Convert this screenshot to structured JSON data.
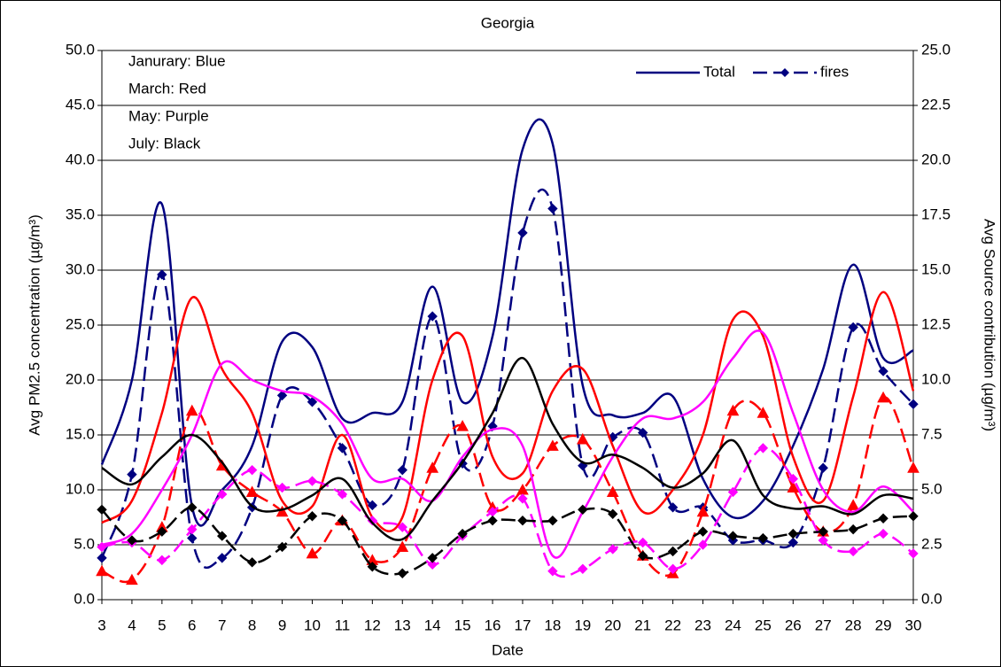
{
  "chart_data": {
    "type": "line",
    "title": "Georgia",
    "xlabel": "Date",
    "ylabel": "Avg PM2.5 concentration (µg/m³)",
    "y2label": "Avg Source contribution (µg/m³)",
    "annotations": [
      "Janurary: Blue",
      "March: Red",
      "May: Purple",
      "July: Black"
    ],
    "x": [
      3,
      4,
      5,
      6,
      7,
      8,
      9,
      10,
      11,
      12,
      13,
      14,
      15,
      16,
      17,
      18,
      19,
      20,
      21,
      22,
      23,
      24,
      25,
      26,
      27,
      28,
      29,
      30
    ],
    "xlim": [
      3,
      30
    ],
    "xticks": [
      3,
      4,
      5,
      6,
      7,
      8,
      9,
      10,
      11,
      12,
      13,
      14,
      15,
      16,
      17,
      18,
      19,
      20,
      21,
      22,
      23,
      24,
      25,
      26,
      27,
      28,
      29,
      30
    ],
    "ylim": [
      0,
      50
    ],
    "yticks": [
      {
        "value": 0,
        "label": "0.0"
      },
      {
        "value": 5,
        "label": "5.0"
      },
      {
        "value": 10,
        "label": "10.0"
      },
      {
        "value": 15,
        "label": "15.0"
      },
      {
        "value": 20,
        "label": "20.0"
      },
      {
        "value": 25,
        "label": "25.0"
      },
      {
        "value": 30,
        "label": "30.0"
      },
      {
        "value": 35,
        "label": "35.0"
      },
      {
        "value": 40,
        "label": "40.0"
      },
      {
        "value": 45,
        "label": "45.0"
      },
      {
        "value": 50,
        "label": "50.0"
      }
    ],
    "y2lim": [
      0,
      25
    ],
    "y2ticks": [
      {
        "value": 0,
        "label": "0.0"
      },
      2.5,
      {
        "value": 5,
        "label": "5.0"
      },
      7.5,
      {
        "value": 10,
        "label": "10.0"
      },
      12.5,
      {
        "value": 15,
        "label": "15.0"
      },
      17.5,
      {
        "value": 20,
        "label": "20.0"
      },
      22.5,
      {
        "value": 25,
        "label": "25.0"
      }
    ],
    "grid": true,
    "legend": "upper right",
    "series": [
      {
        "name": "Total",
        "color": "#000080",
        "values": [
          12.3,
          20,
          36,
          8.5,
          10,
          14,
          23.5,
          23,
          16.5,
          17,
          18,
          28.5,
          18,
          24,
          41,
          41.5,
          19.5,
          16.8,
          17,
          18.5,
          11,
          7.5,
          9,
          14,
          21,
          30.5,
          22,
          22.7
        ]
      },
      {
        "name": "fires",
        "color": "#000080",
        "axis": "y2",
        "dash": true,
        "marker": "diamond",
        "values": [
          1.9,
          5.7,
          14.8,
          2.8,
          1.9,
          4.2,
          9.3,
          9.0,
          6.9,
          4.3,
          5.9,
          12.9,
          6.2,
          7.9,
          16.7,
          17.8,
          6.1,
          7.4,
          7.6,
          4.2,
          4.2,
          2.7,
          2.7,
          2.6,
          6.0,
          12.4,
          10.4,
          8.9
        ]
      },
      {
        "color": "#ff0000",
        "values": [
          7,
          9,
          17,
          27.5,
          21,
          17,
          9,
          8.5,
          15,
          7.5,
          7.5,
          20,
          24,
          13,
          11.5,
          19,
          21,
          14,
          8,
          10,
          15,
          25.5,
          24,
          13,
          9,
          18.5,
          28,
          19
        ]
      },
      {
        "color": "#ff0000",
        "axis": "y2",
        "dash": true,
        "marker": "triangle",
        "values": [
          1.3,
          0.9,
          3.3,
          8.6,
          6.1,
          4.9,
          4.0,
          2.1,
          3.6,
          1.8,
          2.4,
          6.0,
          7.9,
          4.2,
          5.0,
          7.0,
          7.3,
          4.9,
          2.0,
          1.2,
          4.0,
          8.6,
          8.5,
          5.1,
          3.1,
          4.3,
          9.2,
          6.0
        ]
      },
      {
        "color": "#ff00ff",
        "values": [
          5,
          6,
          10,
          15,
          21.5,
          20,
          19,
          18.5,
          16,
          11,
          11,
          9,
          13,
          15.5,
          14,
          4,
          8,
          13,
          16.5,
          16.5,
          18,
          22,
          24.3,
          17,
          10,
          8,
          10.3,
          8
        ]
      },
      {
        "color": "#ff00ff",
        "axis": "y2",
        "dash": true,
        "marker": "diamond",
        "values": [
          2.4,
          2.6,
          1.8,
          3.2,
          4.8,
          5.9,
          5.1,
          5.4,
          4.8,
          3.6,
          3.3,
          1.6,
          2.9,
          4.0,
          4.6,
          1.3,
          1.4,
          2.3,
          2.6,
          1.4,
          2.5,
          4.9,
          6.9,
          5.5,
          2.7,
          2.2,
          3.0,
          2.1
        ]
      },
      {
        "color": "#000000",
        "values": [
          12,
          10.5,
          13,
          15,
          12.5,
          8.5,
          8.2,
          9.5,
          11,
          7,
          5.5,
          9,
          12.5,
          17,
          22,
          16,
          12.5,
          13.2,
          12,
          10.2,
          11.5,
          14.5,
          9.5,
          8.3,
          8.5,
          7.8,
          9.5,
          9.2
        ]
      },
      {
        "color": "#000000",
        "axis": "y2",
        "dash": true,
        "marker": "diamond",
        "values": [
          4.1,
          2.7,
          3.1,
          4.2,
          2.9,
          1.7,
          2.4,
          3.8,
          3.6,
          1.5,
          1.2,
          1.9,
          3.0,
          3.6,
          3.6,
          3.6,
          4.1,
          3.9,
          2.0,
          2.2,
          3.1,
          2.9,
          2.8,
          3.0,
          3.1,
          3.2,
          3.7,
          3.8
        ]
      }
    ]
  }
}
